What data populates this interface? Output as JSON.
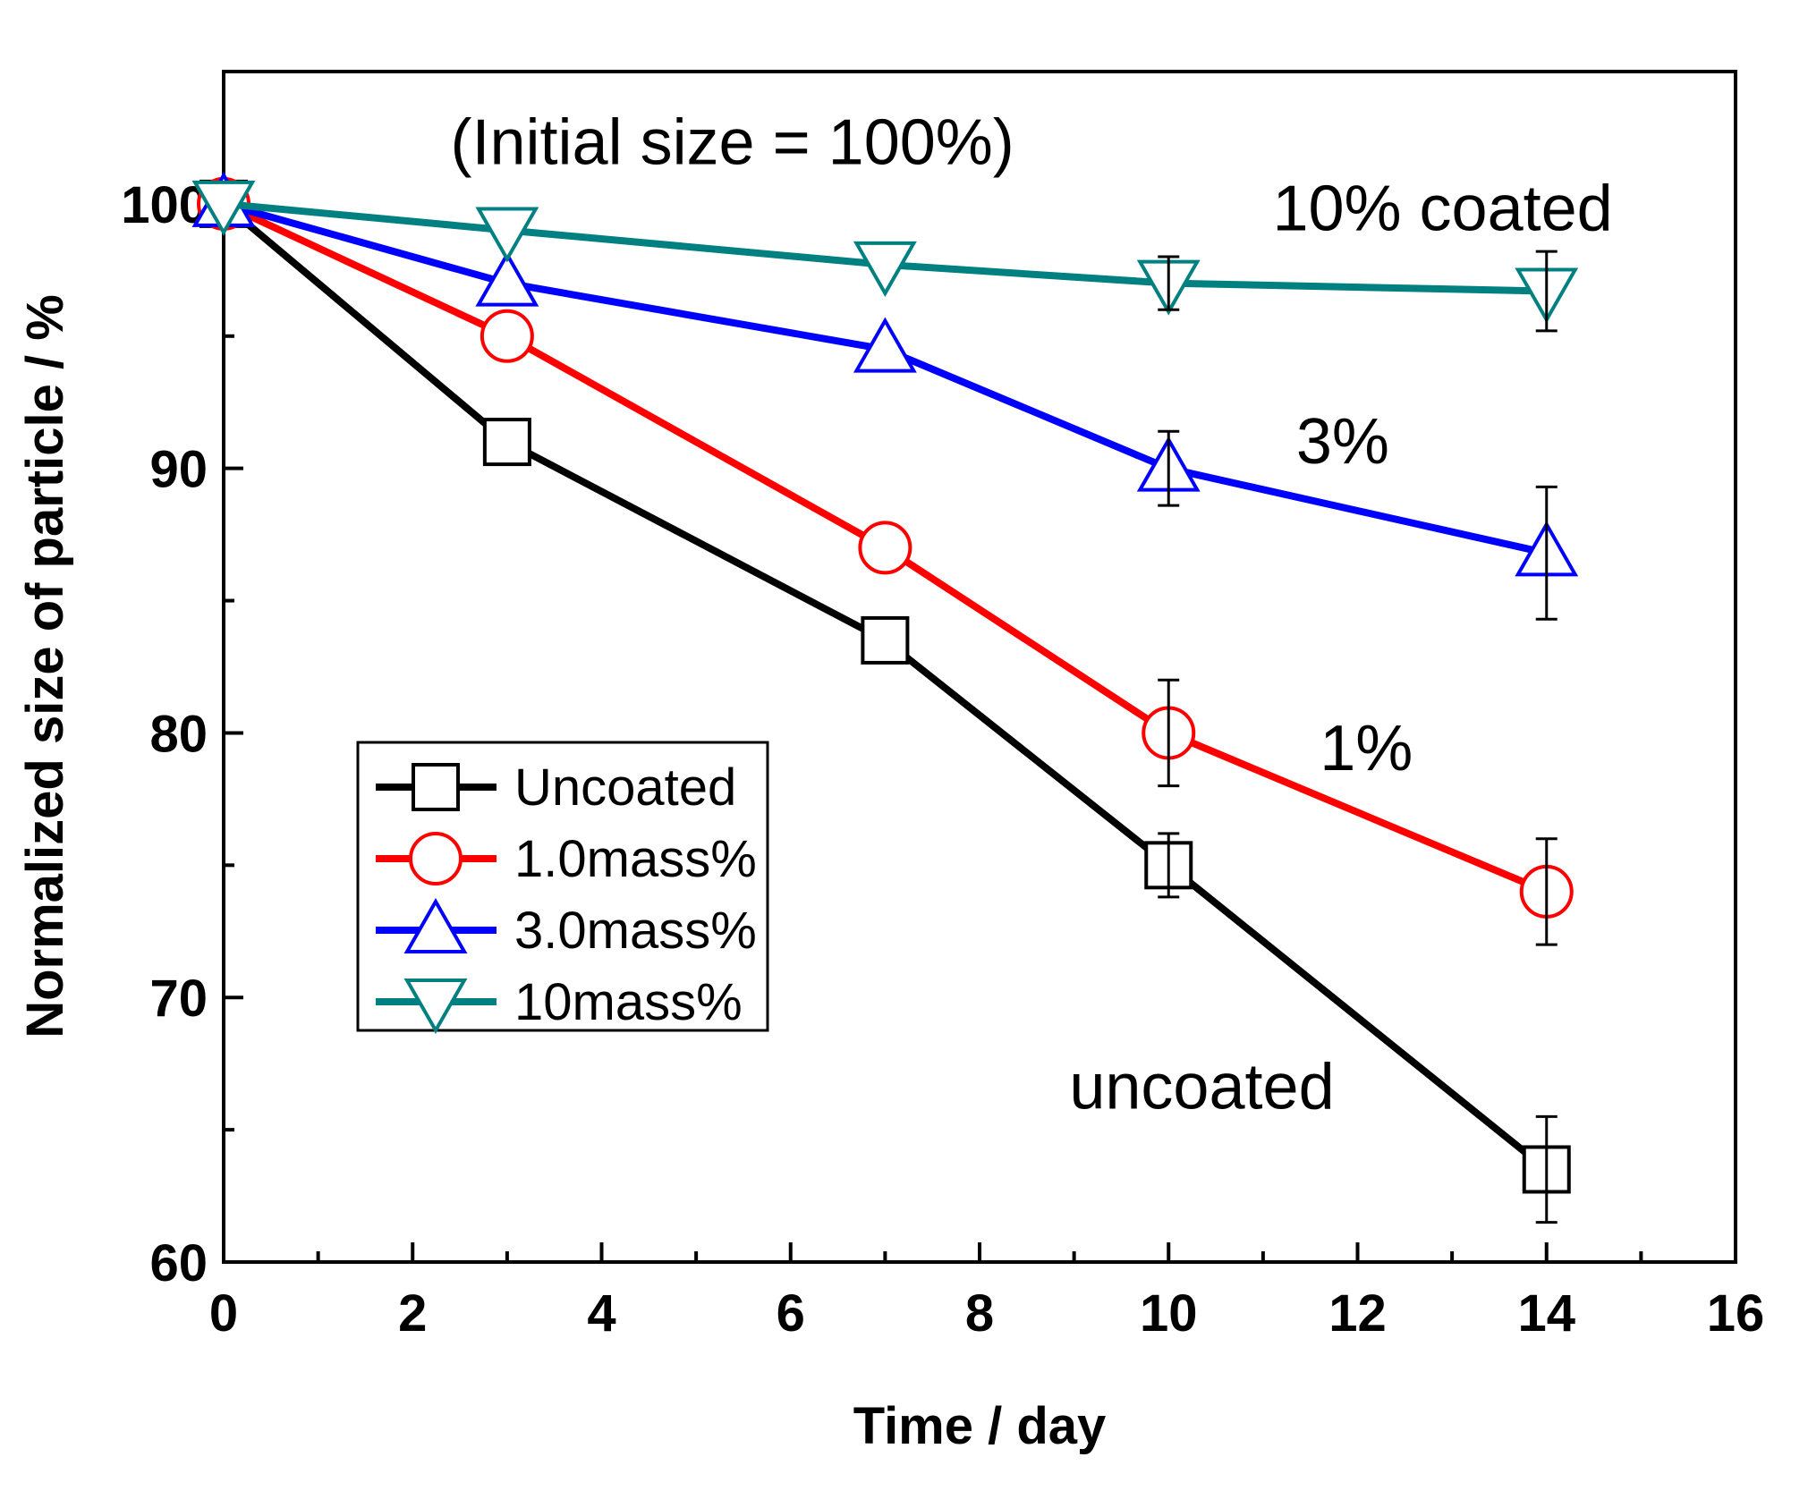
{
  "chart_data": {
    "type": "line",
    "title": "",
    "xlabel": "Time / day",
    "ylabel": "Normalized size of particle / %",
    "xlim": [
      0,
      16
    ],
    "ylim": [
      60,
      105
    ],
    "x_ticks": [
      0,
      2,
      4,
      6,
      8,
      10,
      12,
      14,
      16
    ],
    "y_ticks": [
      60,
      70,
      80,
      90,
      100
    ],
    "grid": false,
    "legend_position": "lower-left",
    "series": [
      {
        "name": "Uncoated",
        "color": "#000000",
        "marker": "square",
        "x": [
          0,
          3,
          7,
          10,
          14
        ],
        "y": [
          100,
          91,
          83.5,
          75,
          63.5
        ],
        "err": [
          0,
          0,
          0,
          1.2,
          2.0
        ]
      },
      {
        "name": "1.0mass%",
        "color": "#ff0000",
        "marker": "circle",
        "x": [
          0,
          3,
          7,
          10,
          14
        ],
        "y": [
          100,
          95,
          87,
          80,
          74
        ],
        "err": [
          0,
          0,
          0,
          2.0,
          2.0
        ]
      },
      {
        "name": "3.0mass%",
        "color": "#0000ff",
        "marker": "triangle-up",
        "x": [
          0,
          3,
          7,
          10,
          14
        ],
        "y": [
          100,
          97,
          94.5,
          90,
          86.8
        ],
        "err": [
          0,
          0,
          0,
          1.4,
          2.5
        ]
      },
      {
        "name": "10mass%",
        "color": "#008080",
        "marker": "triangle-down",
        "x": [
          0,
          3,
          7,
          10,
          14
        ],
        "y": [
          100,
          99,
          97.7,
          97,
          96.7
        ],
        "err": [
          0,
          0,
          0,
          1.0,
          1.5
        ]
      }
    ],
    "annotations": [
      {
        "text": "(Initial size = 100%)",
        "x": 2.4,
        "y": 101.5
      },
      {
        "text": "10% coated",
        "x": 11.1,
        "y": 99.0
      },
      {
        "text": "3%",
        "x": 11.35,
        "y": 90.2
      },
      {
        "text": "1%",
        "x": 11.6,
        "y": 78.6
      },
      {
        "text": "uncoated",
        "x": 8.95,
        "y": 65.8
      }
    ]
  }
}
